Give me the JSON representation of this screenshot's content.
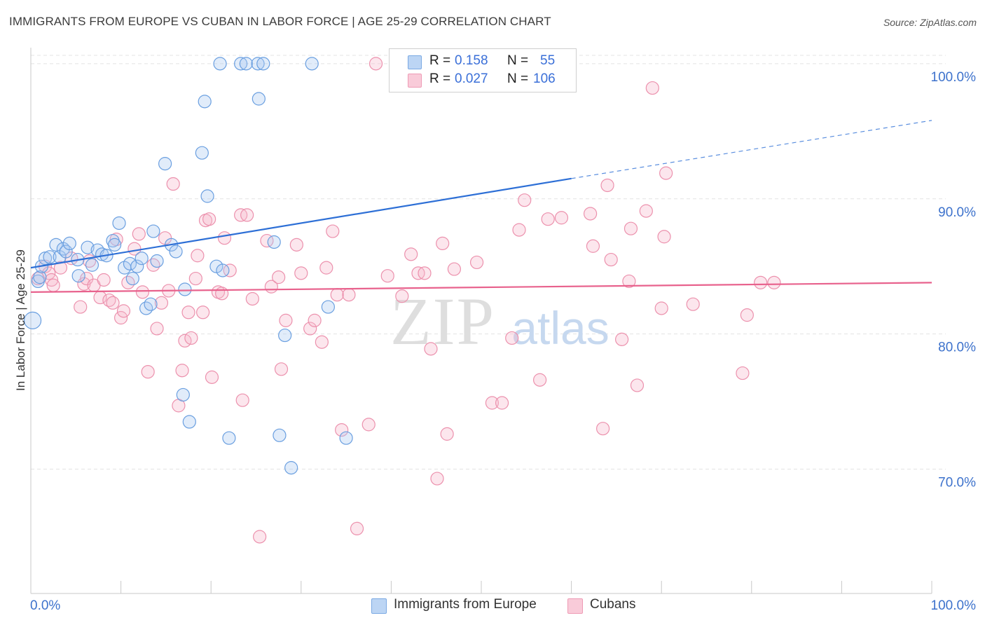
{
  "header": {
    "title": "IMMIGRANTS FROM EUROPE VS CUBAN IN LABOR FORCE | AGE 25-29 CORRELATION CHART",
    "source": "Source: ZipAtlas.com"
  },
  "watermark": {
    "zip": "ZIP",
    "atlas": "atlas"
  },
  "legend": {
    "rows": [
      {
        "r_label": "R =",
        "r_value": "0.158",
        "n_label": "N =",
        "n_value": "55",
        "color": "#a8c8f0"
      },
      {
        "r_label": "R =",
        "r_value": "0.027",
        "n_label": "N =",
        "n_value": "106",
        "color": "#f6b8cb"
      }
    ]
  },
  "bottom_legend": {
    "items": [
      {
        "label": "Immigrants from Europe",
        "color": "#a8c8f0"
      },
      {
        "label": "Cubans",
        "color": "#f6b8cb"
      }
    ]
  },
  "chart_data": {
    "type": "scatter",
    "xlabel": "",
    "ylabel": "In Labor Force | Age 25-29",
    "xlim": [
      0,
      100
    ],
    "ylim": [
      60.8,
      101.6
    ],
    "x_tick_labels": [
      "0.0%",
      "100.0%"
    ],
    "y_ticks": [
      70,
      80,
      90,
      100
    ],
    "y_tick_labels": [
      "70.0%",
      "80.0%",
      "90.0%",
      "100.0%"
    ],
    "grid": true,
    "legend_position": "top-center",
    "colors": {
      "europe_stroke": "#6a9fe0",
      "europe_fill": "#a8c8f0",
      "europe_line": "#2d6fd6",
      "cuban_stroke": "#ec91ad",
      "cuban_fill": "#f6b8cb",
      "cuban_line": "#e8628d",
      "tick_label": "#3d72cc"
    },
    "series": [
      {
        "name": "Immigrants from Europe",
        "trend": {
          "x": [
            0,
            60,
            100
          ],
          "y": [
            84.9,
            91.5,
            95.8
          ],
          "solid_until": 60
        },
        "points": [
          [
            0.2,
            81.0
          ],
          [
            0.8,
            83.9
          ],
          [
            1.0,
            84.2
          ],
          [
            1.2,
            85.0
          ],
          [
            1.6,
            85.6
          ],
          [
            2.1,
            85.7
          ],
          [
            2.8,
            86.6
          ],
          [
            3.2,
            85.7
          ],
          [
            3.6,
            86.3
          ],
          [
            3.9,
            86.1
          ],
          [
            4.3,
            86.7
          ],
          [
            5.2,
            85.5
          ],
          [
            5.3,
            84.3
          ],
          [
            6.3,
            86.4
          ],
          [
            6.8,
            85.1
          ],
          [
            7.4,
            86.2
          ],
          [
            7.9,
            85.9
          ],
          [
            8.4,
            85.8
          ],
          [
            9.1,
            86.9
          ],
          [
            9.3,
            86.6
          ],
          [
            9.8,
            88.2
          ],
          [
            10.4,
            84.9
          ],
          [
            11.0,
            85.2
          ],
          [
            11.3,
            84.1
          ],
          [
            11.8,
            85.0
          ],
          [
            12.3,
            85.6
          ],
          [
            12.8,
            81.9
          ],
          [
            13.3,
            82.2
          ],
          [
            13.6,
            87.6
          ],
          [
            14.0,
            85.4
          ],
          [
            14.9,
            92.6
          ],
          [
            15.6,
            86.6
          ],
          [
            16.1,
            86.1
          ],
          [
            16.9,
            75.5
          ],
          [
            17.1,
            83.3
          ],
          [
            17.6,
            73.5
          ],
          [
            19.0,
            93.4
          ],
          [
            19.3,
            97.2
          ],
          [
            19.6,
            90.2
          ],
          [
            20.6,
            85.0
          ],
          [
            21.0,
            100.0
          ],
          [
            21.3,
            84.7
          ],
          [
            22.0,
            72.3
          ],
          [
            23.3,
            100.0
          ],
          [
            23.9,
            100.0
          ],
          [
            25.2,
            100.0
          ],
          [
            25.3,
            97.4
          ],
          [
            25.8,
            100.0
          ],
          [
            27.0,
            86.8
          ],
          [
            27.6,
            72.5
          ],
          [
            28.2,
            79.9
          ],
          [
            28.9,
            70.1
          ],
          [
            31.2,
            100.0
          ],
          [
            33.0,
            82.0
          ],
          [
            35.0,
            72.3
          ]
        ]
      },
      {
        "name": "Cubans",
        "trend": {
          "x": [
            0,
            100
          ],
          "y": [
            83.1,
            83.8
          ],
          "solid_until": 100
        },
        "points": [
          [
            0.8,
            84.1
          ],
          [
            1.6,
            85.0
          ],
          [
            2.0,
            84.5
          ],
          [
            2.3,
            84.0
          ],
          [
            2.5,
            83.6
          ],
          [
            3.3,
            84.9
          ],
          [
            4.5,
            85.6
          ],
          [
            5.5,
            82.0
          ],
          [
            5.9,
            83.7
          ],
          [
            6.2,
            84.1
          ],
          [
            6.5,
            85.4
          ],
          [
            7.0,
            83.6
          ],
          [
            7.7,
            82.7
          ],
          [
            8.1,
            84.0
          ],
          [
            8.7,
            82.5
          ],
          [
            9.1,
            82.3
          ],
          [
            9.5,
            87.0
          ],
          [
            10.0,
            81.2
          ],
          [
            10.3,
            81.7
          ],
          [
            10.8,
            83.8
          ],
          [
            11.5,
            86.3
          ],
          [
            12.0,
            87.4
          ],
          [
            12.4,
            83.1
          ],
          [
            13.0,
            77.2
          ],
          [
            13.6,
            85.1
          ],
          [
            14.0,
            80.4
          ],
          [
            14.5,
            82.3
          ],
          [
            14.9,
            87.1
          ],
          [
            15.3,
            83.2
          ],
          [
            15.8,
            91.1
          ],
          [
            16.4,
            74.7
          ],
          [
            16.8,
            77.3
          ],
          [
            17.1,
            79.5
          ],
          [
            17.5,
            81.6
          ],
          [
            17.8,
            79.7
          ],
          [
            18.3,
            84.1
          ],
          [
            18.5,
            85.8
          ],
          [
            19.1,
            81.6
          ],
          [
            19.4,
            88.4
          ],
          [
            19.8,
            88.5
          ],
          [
            20.1,
            76.8
          ],
          [
            20.8,
            83.1
          ],
          [
            21.2,
            83.0
          ],
          [
            21.5,
            87.1
          ],
          [
            22.1,
            84.7
          ],
          [
            23.3,
            88.8
          ],
          [
            23.5,
            75.1
          ],
          [
            24.0,
            88.8
          ],
          [
            24.6,
            82.6
          ],
          [
            25.4,
            65.0
          ],
          [
            26.2,
            86.9
          ],
          [
            26.7,
            83.5
          ],
          [
            27.5,
            84.2
          ],
          [
            27.8,
            77.4
          ],
          [
            28.3,
            81.0
          ],
          [
            29.5,
            86.6
          ],
          [
            30.0,
            84.5
          ],
          [
            31.0,
            80.4
          ],
          [
            31.5,
            81.0
          ],
          [
            32.3,
            79.4
          ],
          [
            32.8,
            84.9
          ],
          [
            33.5,
            87.6
          ],
          [
            34.0,
            82.9
          ],
          [
            34.5,
            72.9
          ],
          [
            35.3,
            82.9
          ],
          [
            36.2,
            65.6
          ],
          [
            37.5,
            73.3
          ],
          [
            38.3,
            100.0
          ],
          [
            39.6,
            84.3
          ],
          [
            41.2,
            82.8
          ],
          [
            42.2,
            85.9
          ],
          [
            43.0,
            84.5
          ],
          [
            43.7,
            84.5
          ],
          [
            44.4,
            78.9
          ],
          [
            45.1,
            69.3
          ],
          [
            45.7,
            86.7
          ],
          [
            46.2,
            72.6
          ],
          [
            47.0,
            84.8
          ],
          [
            49.5,
            85.3
          ],
          [
            51.2,
            74.9
          ],
          [
            52.3,
            74.9
          ],
          [
            53.4,
            79.7
          ],
          [
            54.2,
            87.7
          ],
          [
            54.8,
            89.9
          ],
          [
            56.5,
            76.6
          ],
          [
            57.4,
            88.5
          ],
          [
            58.9,
            88.6
          ],
          [
            62.1,
            88.9
          ],
          [
            62.4,
            86.5
          ],
          [
            63.5,
            73.0
          ],
          [
            64.0,
            91.0
          ],
          [
            64.4,
            85.5
          ],
          [
            65.6,
            79.6
          ],
          [
            66.4,
            83.9
          ],
          [
            66.6,
            87.8
          ],
          [
            67.3,
            76.2
          ],
          [
            68.3,
            89.1
          ],
          [
            69.0,
            98.2
          ],
          [
            70.0,
            81.9
          ],
          [
            70.3,
            87.2
          ],
          [
            70.5,
            91.9
          ],
          [
            73.5,
            82.2
          ],
          [
            79.0,
            77.1
          ],
          [
            79.5,
            81.4
          ],
          [
            81.0,
            83.8
          ],
          [
            82.5,
            83.8
          ]
        ]
      }
    ]
  }
}
